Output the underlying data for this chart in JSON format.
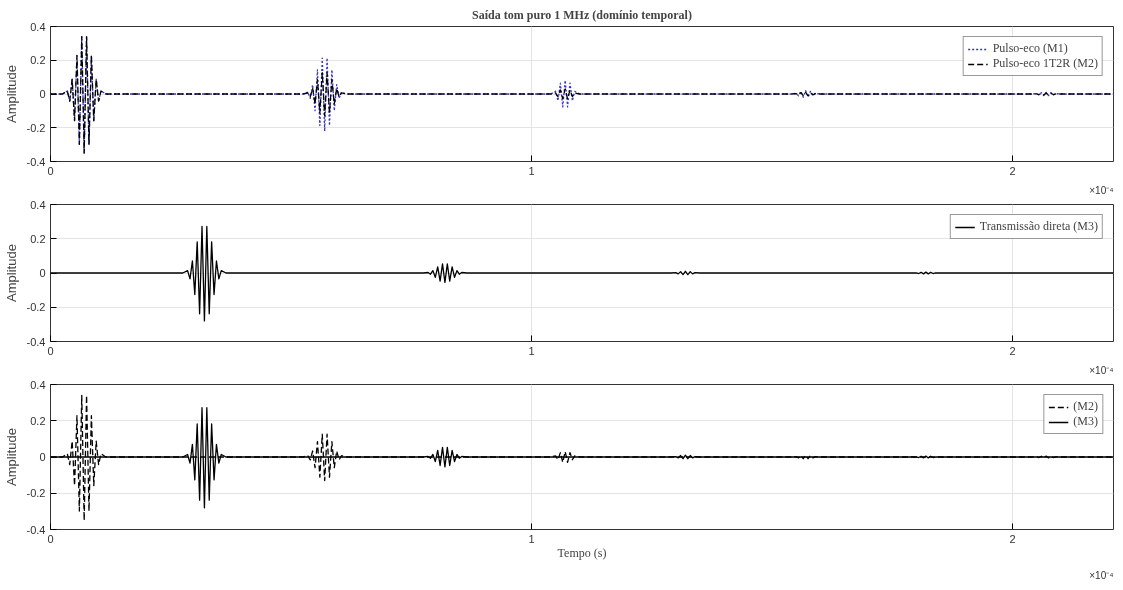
{
  "chart_data": [
    {
      "type": "line",
      "title": "Saída tom puro 1 MHz (domínio temporal)",
      "ylabel": "Amplitude",
      "annotations": [
        "×10⁻⁴"
      ],
      "xlim": [
        0,
        2.21
      ],
      "xticks": [
        0,
        1,
        2
      ],
      "ylim": [
        -0.4,
        0.4
      ],
      "yticks": [
        -0.4,
        -0.2,
        0,
        0.2,
        0.4
      ],
      "grid": true,
      "legend": "top right",
      "marker": "none",
      "series": [
        {
          "name": "Pulso-eco (M1)",
          "color": "#3333cc",
          "line_style": "dotted",
          "x": [
            0,
            0.025,
            0.035,
            0.04,
            0.045,
            0.05,
            0.055,
            0.06,
            0.065,
            0.07,
            0.075,
            0.08,
            0.085,
            0.09,
            0.095,
            0.1,
            0.105,
            0.115,
            0.525,
            0.535,
            0.54,
            0.545,
            0.55,
            0.555,
            0.56,
            0.565,
            0.57,
            0.575,
            0.58,
            0.585,
            0.59,
            0.595,
            0.6,
            0.605,
            0.615,
            1.04,
            1.05,
            1.055,
            1.06,
            1.065,
            1.07,
            1.075,
            1.08,
            1.085,
            1.09,
            1.1,
            1.54,
            1.55,
            1.555,
            1.56,
            1.565,
            1.57,
            1.575,
            1.58,
            1.585,
            1.59,
            1.6,
            2.04,
            2.05,
            2.055,
            2.06,
            2.065,
            2.07,
            2.075,
            2.08,
            2.085,
            2.09,
            2.1,
            2.21
          ],
          "values": [
            0,
            0,
            0.018,
            -0.042,
            0.088,
            -0.158,
            0.228,
            -0.298,
            0.34,
            -0.35,
            0.34,
            -0.298,
            0.228,
            -0.158,
            0.088,
            -0.042,
            0.018,
            0,
            0,
            0.011,
            -0.026,
            0.055,
            -0.099,
            0.143,
            -0.187,
            0.213,
            -0.22,
            0.213,
            -0.187,
            0.143,
            -0.099,
            0.055,
            -0.026,
            0.011,
            0,
            0,
            0.016,
            -0.04,
            0.064,
            -0.076,
            0.08,
            -0.076,
            0.064,
            -0.04,
            0.016,
            0,
            0,
            0.004,
            -0.01,
            0.016,
            -0.019,
            0.02,
            -0.019,
            0.016,
            -0.01,
            0.004,
            0,
            0,
            0.002,
            -0.005,
            0.008,
            -0.0095,
            0.01,
            -0.0095,
            0.008,
            -0.005,
            0.002,
            0,
            0
          ]
        },
        {
          "name": "Pulso-eco 1T2R (M2)",
          "color": "#000000",
          "line_style": "dashed",
          "x": [
            0,
            0.025,
            0.035,
            0.04,
            0.045,
            0.05,
            0.055,
            0.06,
            0.065,
            0.07,
            0.075,
            0.08,
            0.085,
            0.09,
            0.095,
            0.1,
            0.105,
            0.115,
            0.525,
            0.535,
            0.54,
            0.545,
            0.55,
            0.555,
            0.56,
            0.565,
            0.57,
            0.575,
            0.58,
            0.585,
            0.59,
            0.595,
            0.6,
            0.605,
            0.615,
            1.04,
            1.05,
            1.055,
            1.06,
            1.065,
            1.07,
            1.075,
            1.08,
            1.085,
            1.09,
            1.1,
            1.54,
            1.55,
            1.555,
            1.56,
            1.565,
            1.57,
            1.575,
            1.58,
            1.585,
            1.59,
            1.6,
            2.04,
            2.05,
            2.055,
            2.06,
            2.065,
            2.07,
            2.075,
            2.08,
            2.085,
            2.09,
            2.1,
            2.21
          ],
          "values": [
            0,
            0,
            0.018,
            -0.042,
            0.088,
            -0.158,
            0.228,
            -0.298,
            0.34,
            -0.35,
            0.34,
            -0.298,
            0.228,
            -0.158,
            0.088,
            -0.042,
            0.018,
            0,
            0,
            0.007,
            -0.016,
            0.033,
            -0.059,
            0.085,
            -0.111,
            0.126,
            -0.13,
            0.126,
            -0.111,
            0.085,
            -0.059,
            0.033,
            -0.016,
            0.007,
            0,
            0,
            0.006,
            -0.015,
            0.024,
            -0.029,
            0.03,
            -0.029,
            0.024,
            -0.015,
            0.006,
            0,
            0,
            0.002,
            -0.005,
            0.008,
            -0.0095,
            0.01,
            -0.0095,
            0.008,
            -0.005,
            0.002,
            0,
            0,
            0.001,
            -0.003,
            0.004,
            -0.005,
            0.005,
            -0.005,
            0.004,
            -0.003,
            0.001,
            0,
            0
          ]
        }
      ]
    },
    {
      "type": "line",
      "ylabel": "Amplitude",
      "annotations": [
        "×10⁻⁴"
      ],
      "xlim": [
        0,
        2.21
      ],
      "xticks": [
        0,
        1,
        2
      ],
      "ylim": [
        -0.4,
        0.4
      ],
      "yticks": [
        -0.4,
        -0.2,
        0,
        0.2,
        0.4
      ],
      "grid": true,
      "legend": "top right",
      "marker": "none",
      "series": [
        {
          "name": "Transmissão direta (M3)",
          "color": "#000000",
          "line_style": "solid",
          "x": [
            0,
            0.275,
            0.285,
            0.29,
            0.295,
            0.3,
            0.305,
            0.31,
            0.315,
            0.32,
            0.325,
            0.33,
            0.335,
            0.34,
            0.345,
            0.35,
            0.355,
            0.365,
            0.775,
            0.785,
            0.79,
            0.795,
            0.8,
            0.805,
            0.81,
            0.815,
            0.82,
            0.825,
            0.83,
            0.835,
            0.84,
            0.845,
            0.85,
            0.855,
            0.865,
            1.29,
            1.3,
            1.305,
            1.31,
            1.315,
            1.32,
            1.325,
            1.33,
            1.335,
            1.34,
            1.35,
            1.79,
            1.8,
            1.805,
            1.81,
            1.815,
            1.82,
            1.825,
            1.83,
            1.835,
            1.84,
            1.85,
            2.21
          ],
          "values": [
            0,
            0,
            0.014,
            -0.034,
            0.07,
            -0.126,
            0.182,
            -0.238,
            0.272,
            -0.28,
            0.272,
            -0.238,
            0.182,
            -0.126,
            0.07,
            -0.034,
            0.014,
            0,
            0,
            0.003,
            -0.007,
            0.014,
            -0.025,
            0.036,
            -0.047,
            0.053,
            -0.055,
            0.053,
            -0.047,
            0.036,
            -0.025,
            0.014,
            -0.007,
            0.003,
            0,
            0,
            0.002,
            -0.005,
            0.008,
            -0.0095,
            0.01,
            -0.0095,
            0.008,
            -0.005,
            0.002,
            0,
            0,
            0.001,
            -0.003,
            0.004,
            -0.005,
            0.005,
            -0.005,
            0.004,
            -0.003,
            0.001,
            0,
            0
          ]
        }
      ]
    },
    {
      "type": "line",
      "xlabel": "Tempo (s)",
      "ylabel": "Amplitude",
      "annotations": [
        "×10⁻⁴"
      ],
      "xlim": [
        0,
        2.21
      ],
      "xticks": [
        0,
        1,
        2
      ],
      "ylim": [
        -0.4,
        0.4
      ],
      "yticks": [
        -0.4,
        -0.2,
        0,
        0.2,
        0.4
      ],
      "grid": true,
      "legend": "top right",
      "marker": "none",
      "series": [
        {
          "name": "(M2)",
          "color": "#000000",
          "line_style": "dashed",
          "x": [
            0,
            0.025,
            0.035,
            0.04,
            0.045,
            0.05,
            0.055,
            0.06,
            0.065,
            0.07,
            0.075,
            0.08,
            0.085,
            0.09,
            0.095,
            0.1,
            0.105,
            0.115,
            0.525,
            0.535,
            0.54,
            0.545,
            0.55,
            0.555,
            0.56,
            0.565,
            0.57,
            0.575,
            0.58,
            0.585,
            0.59,
            0.595,
            0.6,
            0.605,
            0.615,
            1.04,
            1.05,
            1.055,
            1.06,
            1.065,
            1.07,
            1.075,
            1.08,
            1.085,
            1.09,
            1.1,
            1.54,
            1.55,
            1.555,
            1.56,
            1.565,
            1.57,
            1.575,
            1.58,
            1.585,
            1.59,
            1.6,
            2.04,
            2.05,
            2.055,
            2.06,
            2.065,
            2.07,
            2.075,
            2.08,
            2.085,
            2.09,
            2.1,
            2.21
          ],
          "values": [
            0,
            0,
            0.018,
            -0.042,
            0.088,
            -0.158,
            0.228,
            -0.298,
            0.34,
            -0.35,
            0.34,
            -0.298,
            0.228,
            -0.158,
            0.088,
            -0.042,
            0.018,
            0,
            0,
            0.007,
            -0.016,
            0.033,
            -0.059,
            0.085,
            -0.111,
            0.126,
            -0.13,
            0.126,
            -0.111,
            0.085,
            -0.059,
            0.033,
            -0.016,
            0.007,
            0,
            0,
            0.006,
            -0.015,
            0.024,
            -0.029,
            0.03,
            -0.029,
            0.024,
            -0.015,
            0.006,
            0,
            0,
            0.002,
            -0.005,
            0.008,
            -0.0095,
            0.01,
            -0.0095,
            0.008,
            -0.005,
            0.002,
            0,
            0,
            0.001,
            -0.003,
            0.004,
            -0.005,
            0.005,
            -0.005,
            0.004,
            -0.003,
            0.001,
            0,
            0
          ]
        },
        {
          "name": "(M3)",
          "color": "#000000",
          "line_style": "solid",
          "x": [
            0,
            0.275,
            0.285,
            0.29,
            0.295,
            0.3,
            0.305,
            0.31,
            0.315,
            0.32,
            0.325,
            0.33,
            0.335,
            0.34,
            0.345,
            0.35,
            0.355,
            0.365,
            0.775,
            0.785,
            0.79,
            0.795,
            0.8,
            0.805,
            0.81,
            0.815,
            0.82,
            0.825,
            0.83,
            0.835,
            0.84,
            0.845,
            0.85,
            0.855,
            0.865,
            1.29,
            1.3,
            1.305,
            1.31,
            1.315,
            1.32,
            1.325,
            1.33,
            1.335,
            1.34,
            1.35,
            1.79,
            1.8,
            1.805,
            1.81,
            1.815,
            1.82,
            1.825,
            1.83,
            1.835,
            1.84,
            1.85,
            2.21
          ],
          "values": [
            0,
            0,
            0.014,
            -0.034,
            0.07,
            -0.126,
            0.182,
            -0.238,
            0.272,
            -0.28,
            0.272,
            -0.238,
            0.182,
            -0.126,
            0.07,
            -0.034,
            0.014,
            0,
            0,
            0.003,
            -0.007,
            0.014,
            -0.025,
            0.036,
            -0.047,
            0.053,
            -0.055,
            0.053,
            -0.047,
            0.036,
            -0.025,
            0.014,
            -0.007,
            0.003,
            0,
            0,
            0.002,
            -0.005,
            0.008,
            -0.0095,
            0.01,
            -0.0095,
            0.008,
            -0.005,
            0.002,
            0,
            0,
            0.001,
            -0.003,
            0.004,
            -0.005,
            0.005,
            -0.005,
            0.004,
            -0.003,
            0.001,
            0,
            0
          ]
        }
      ]
    }
  ]
}
